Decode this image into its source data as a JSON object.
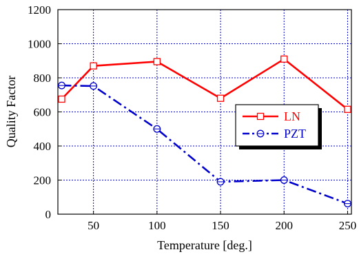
{
  "chart_data": {
    "type": "line",
    "xlabel": "Temperature [deg.]",
    "ylabel": "Quality Factor",
    "xlim": [
      22,
      253
    ],
    "ylim": [
      0,
      1200
    ],
    "xticks": [
      50,
      100,
      150,
      200,
      250
    ],
    "yticks": [
      0,
      200,
      400,
      600,
      800,
      1000,
      1200
    ],
    "grid": true,
    "legend_position": "right",
    "series": [
      {
        "name": "LN",
        "color": "#ff0000",
        "line_style": "solid",
        "marker": "square",
        "x": [
          25,
          50,
          100,
          150,
          200,
          250
        ],
        "values": [
          675,
          870,
          895,
          680,
          910,
          615
        ]
      },
      {
        "name": "PZT",
        "color": "#0000cc",
        "line_style": "dash-dot",
        "marker": "circle",
        "x": [
          25,
          50,
          100,
          150,
          200,
          250
        ],
        "values": [
          755,
          752,
          500,
          190,
          200,
          62
        ]
      }
    ]
  }
}
